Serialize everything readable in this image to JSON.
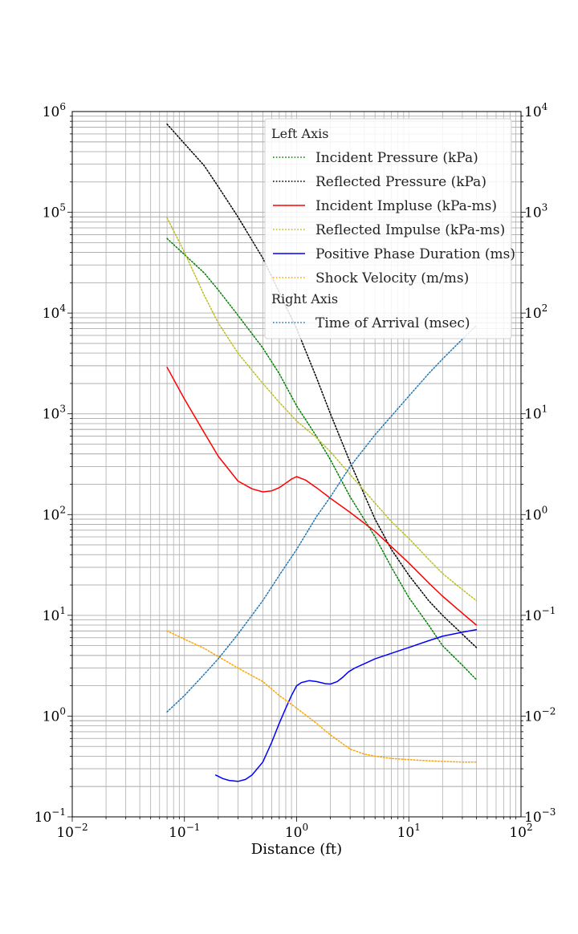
{
  "chart_data": {
    "type": "line",
    "title": "",
    "xlabel": "Distance (ft)",
    "ylabel_left": "",
    "ylabel_right": "",
    "x_scale": "log",
    "y_left_scale": "log",
    "y_right_scale": "log",
    "xlim": [
      0.01,
      100
    ],
    "ylim_left": [
      0.1,
      1000000
    ],
    "ylim_right": [
      0.001,
      10000
    ],
    "grid": true,
    "legend_placement": "upper-right",
    "x_ticks": [
      {
        "base": "10",
        "exp": "−2"
      },
      {
        "base": "10",
        "exp": "−1"
      },
      {
        "base": "10",
        "exp": "0"
      },
      {
        "base": "10",
        "exp": "1"
      },
      {
        "base": "10",
        "exp": "2"
      }
    ],
    "y_left_ticks": [
      {
        "base": "10",
        "exp": "−1"
      },
      {
        "base": "10",
        "exp": "0"
      },
      {
        "base": "10",
        "exp": "1"
      },
      {
        "base": "10",
        "exp": "2"
      },
      {
        "base": "10",
        "exp": "3"
      },
      {
        "base": "10",
        "exp": "4"
      },
      {
        "base": "10",
        "exp": "5"
      },
      {
        "base": "10",
        "exp": "6"
      }
    ],
    "y_right_ticks": [
      {
        "base": "10",
        "exp": "−3"
      },
      {
        "base": "10",
        "exp": "−2"
      },
      {
        "base": "10",
        "exp": "−1"
      },
      {
        "base": "10",
        "exp": "0"
      },
      {
        "base": "10",
        "exp": "1"
      },
      {
        "base": "10",
        "exp": "2"
      },
      {
        "base": "10",
        "exp": "3"
      },
      {
        "base": "10",
        "exp": "4"
      }
    ],
    "legend": {
      "left_header": "Left Axis",
      "right_header": "Right Axis"
    },
    "series": [
      {
        "name": "Incident Pressure (kPa)",
        "axis": "left",
        "color": "#008000",
        "style": "dotted",
        "x": [
          0.07,
          0.1,
          0.15,
          0.2,
          0.3,
          0.5,
          0.7,
          1,
          1.5,
          2,
          3,
          5,
          7,
          10,
          15,
          20,
          30,
          40
        ],
        "y": [
          55000,
          38000,
          25000,
          17000,
          9500,
          4500,
          2500,
          1200,
          600,
          350,
          150,
          60,
          30,
          15,
          8,
          5,
          3.2,
          2.3
        ]
      },
      {
        "name": "Reflected Pressure (kPa)",
        "axis": "left",
        "color": "#000000",
        "style": "dotted",
        "x": [
          0.07,
          0.1,
          0.15,
          0.2,
          0.3,
          0.5,
          0.7,
          1,
          1.5,
          2,
          3,
          5,
          7,
          10,
          15,
          20,
          30,
          40
        ],
        "y": [
          750000,
          480000,
          290000,
          180000,
          90000,
          35000,
          16000,
          7000,
          2300,
          1000,
          330,
          90,
          45,
          25,
          14,
          10,
          6.5,
          4.8
        ]
      },
      {
        "name": "Incident Impluse (kPa-ms)",
        "axis": "left",
        "color": "#ff0000",
        "style": "solid",
        "x": [
          0.07,
          0.1,
          0.15,
          0.2,
          0.3,
          0.4,
          0.5,
          0.6,
          0.7,
          0.8,
          0.9,
          1.0,
          1.2,
          1.5,
          2,
          3,
          5,
          7,
          10,
          15,
          20,
          30,
          40
        ],
        "y": [
          2900,
          1400,
          650,
          380,
          215,
          180,
          168,
          172,
          185,
          205,
          225,
          238,
          220,
          185,
          145,
          105,
          68,
          48,
          33,
          21,
          15.5,
          10.5,
          8
        ]
      },
      {
        "name": "Reflected Impulse (kPa-ms)",
        "axis": "left",
        "color": "#bcbd22",
        "style": "dotted",
        "x": [
          0.07,
          0.1,
          0.15,
          0.2,
          0.3,
          0.5,
          0.7,
          1,
          1.5,
          2,
          3,
          5,
          7,
          10,
          15,
          20,
          30,
          40
        ],
        "y": [
          88000,
          40000,
          15000,
          8000,
          4000,
          2000,
          1300,
          850,
          580,
          420,
          250,
          130,
          85,
          58,
          36,
          26,
          18,
          14
        ]
      },
      {
        "name": "Positive Phase Duration (ms)",
        "axis": "left",
        "color": "#0000ff",
        "style": "solid",
        "x": [
          0.19,
          0.22,
          0.25,
          0.3,
          0.35,
          0.4,
          0.5,
          0.6,
          0.7,
          0.8,
          0.9,
          1.0,
          1.1,
          1.3,
          1.5,
          1.8,
          2.0,
          2.3,
          2.6,
          2.9,
          3.3,
          4,
          5,
          7,
          10,
          15,
          20,
          30,
          40
        ],
        "y": [
          0.26,
          0.24,
          0.23,
          0.225,
          0.235,
          0.26,
          0.35,
          0.55,
          0.85,
          1.2,
          1.6,
          2.0,
          2.15,
          2.25,
          2.2,
          2.1,
          2.08,
          2.2,
          2.45,
          2.75,
          3.0,
          3.3,
          3.7,
          4.2,
          4.8,
          5.6,
          6.2,
          6.8,
          7.2
        ]
      },
      {
        "name": "Shock Velocity (m/ms)",
        "axis": "left",
        "color": "#ffa500",
        "style": "dotted",
        "x": [
          0.07,
          0.1,
          0.15,
          0.2,
          0.3,
          0.5,
          0.7,
          1,
          1.5,
          2,
          3,
          4,
          5,
          7,
          10,
          15,
          20,
          30,
          40
        ],
        "y": [
          7,
          5.8,
          4.7,
          3.9,
          3.0,
          2.2,
          1.6,
          1.2,
          0.85,
          0.65,
          0.47,
          0.42,
          0.4,
          0.38,
          0.37,
          0.36,
          0.355,
          0.35,
          0.35
        ]
      },
      {
        "name": "Time of Arrival (msec)",
        "axis": "right",
        "color": "#1f77b4",
        "style": "dotted",
        "x": [
          0.07,
          0.1,
          0.15,
          0.2,
          0.3,
          0.5,
          0.7,
          1,
          1.5,
          2,
          3,
          5,
          7,
          10,
          15,
          20,
          30,
          40
        ],
        "y": [
          0.011,
          0.016,
          0.026,
          0.037,
          0.065,
          0.14,
          0.25,
          0.45,
          0.95,
          1.5,
          3.0,
          6.2,
          9.5,
          15,
          25,
          35,
          55,
          75
        ]
      }
    ]
  }
}
